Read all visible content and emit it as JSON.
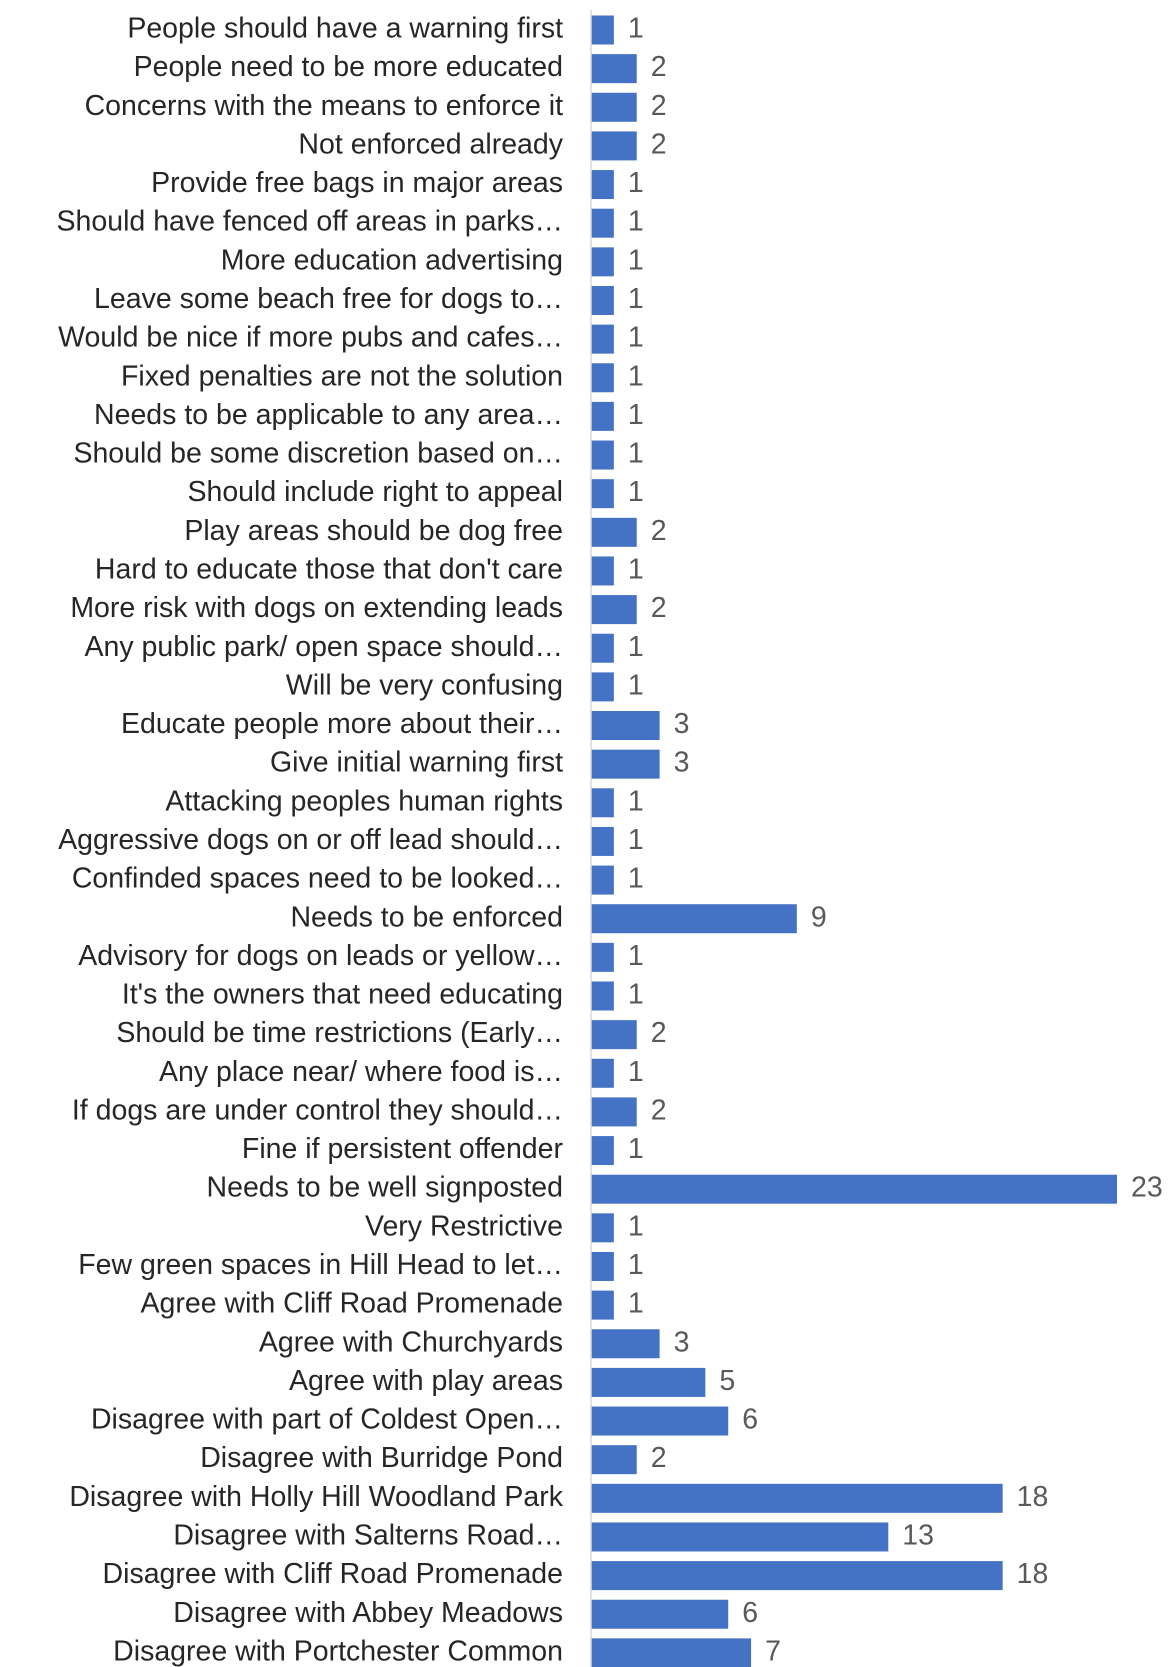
{
  "chart_data": {
    "type": "bar",
    "orientation": "horizontal",
    "color": "#4472c4",
    "categories": [
      "People should have a warning first",
      "People need to be more educated",
      "Concerns with the means to enforce it",
      "Not enforced already",
      "Provide free bags in major areas",
      "Should have fenced off areas in parks…",
      "More education advertising",
      "Leave some beach free for dogs to…",
      "Would be nice if more pubs and cafes…",
      "Fixed penalties are not the solution",
      "Needs to be applicable to any area…",
      "Should be some discretion based on…",
      "Should include right to appeal",
      "Play areas should be dog free",
      "Hard to educate those that don't care",
      "More risk with dogs on extending leads",
      "Any public park/ open space should…",
      "Will be very confusing",
      "Educate people more about their…",
      "Give initial warning first",
      "Attacking peoples human rights",
      "Aggressive dogs on or off lead should…",
      "Confinded spaces need to be looked…",
      "Needs to be enforced",
      "Advisory for dogs on leads or yellow…",
      "It's the owners that need educating",
      "Should be time restrictions (Early…",
      "Any place near/ where food is…",
      "If dogs are under control they should…",
      "Fine if persistent offender",
      "Needs to be well signposted",
      "Very Restrictive",
      "Few green spaces in Hill Head to let…",
      "Agree with Cliff Road Promenade",
      "Agree with Churchyards",
      "Agree with play areas",
      "Disagree with part of Coldest Open…",
      "Disagree with Burridge Pond",
      "Disagree with Holly Hill Woodland Park",
      "Disagree with Salterns Road…",
      "Disagree with Cliff Road Promenade",
      "Disagree with Abbey Meadows",
      "Disagree with Portchester Common"
    ],
    "values": [
      1,
      2,
      2,
      2,
      1,
      1,
      1,
      1,
      1,
      1,
      1,
      1,
      1,
      2,
      1,
      2,
      1,
      1,
      3,
      3,
      1,
      1,
      1,
      9,
      1,
      1,
      2,
      1,
      2,
      1,
      23,
      1,
      1,
      1,
      3,
      5,
      6,
      2,
      18,
      13,
      18,
      6,
      7
    ]
  }
}
